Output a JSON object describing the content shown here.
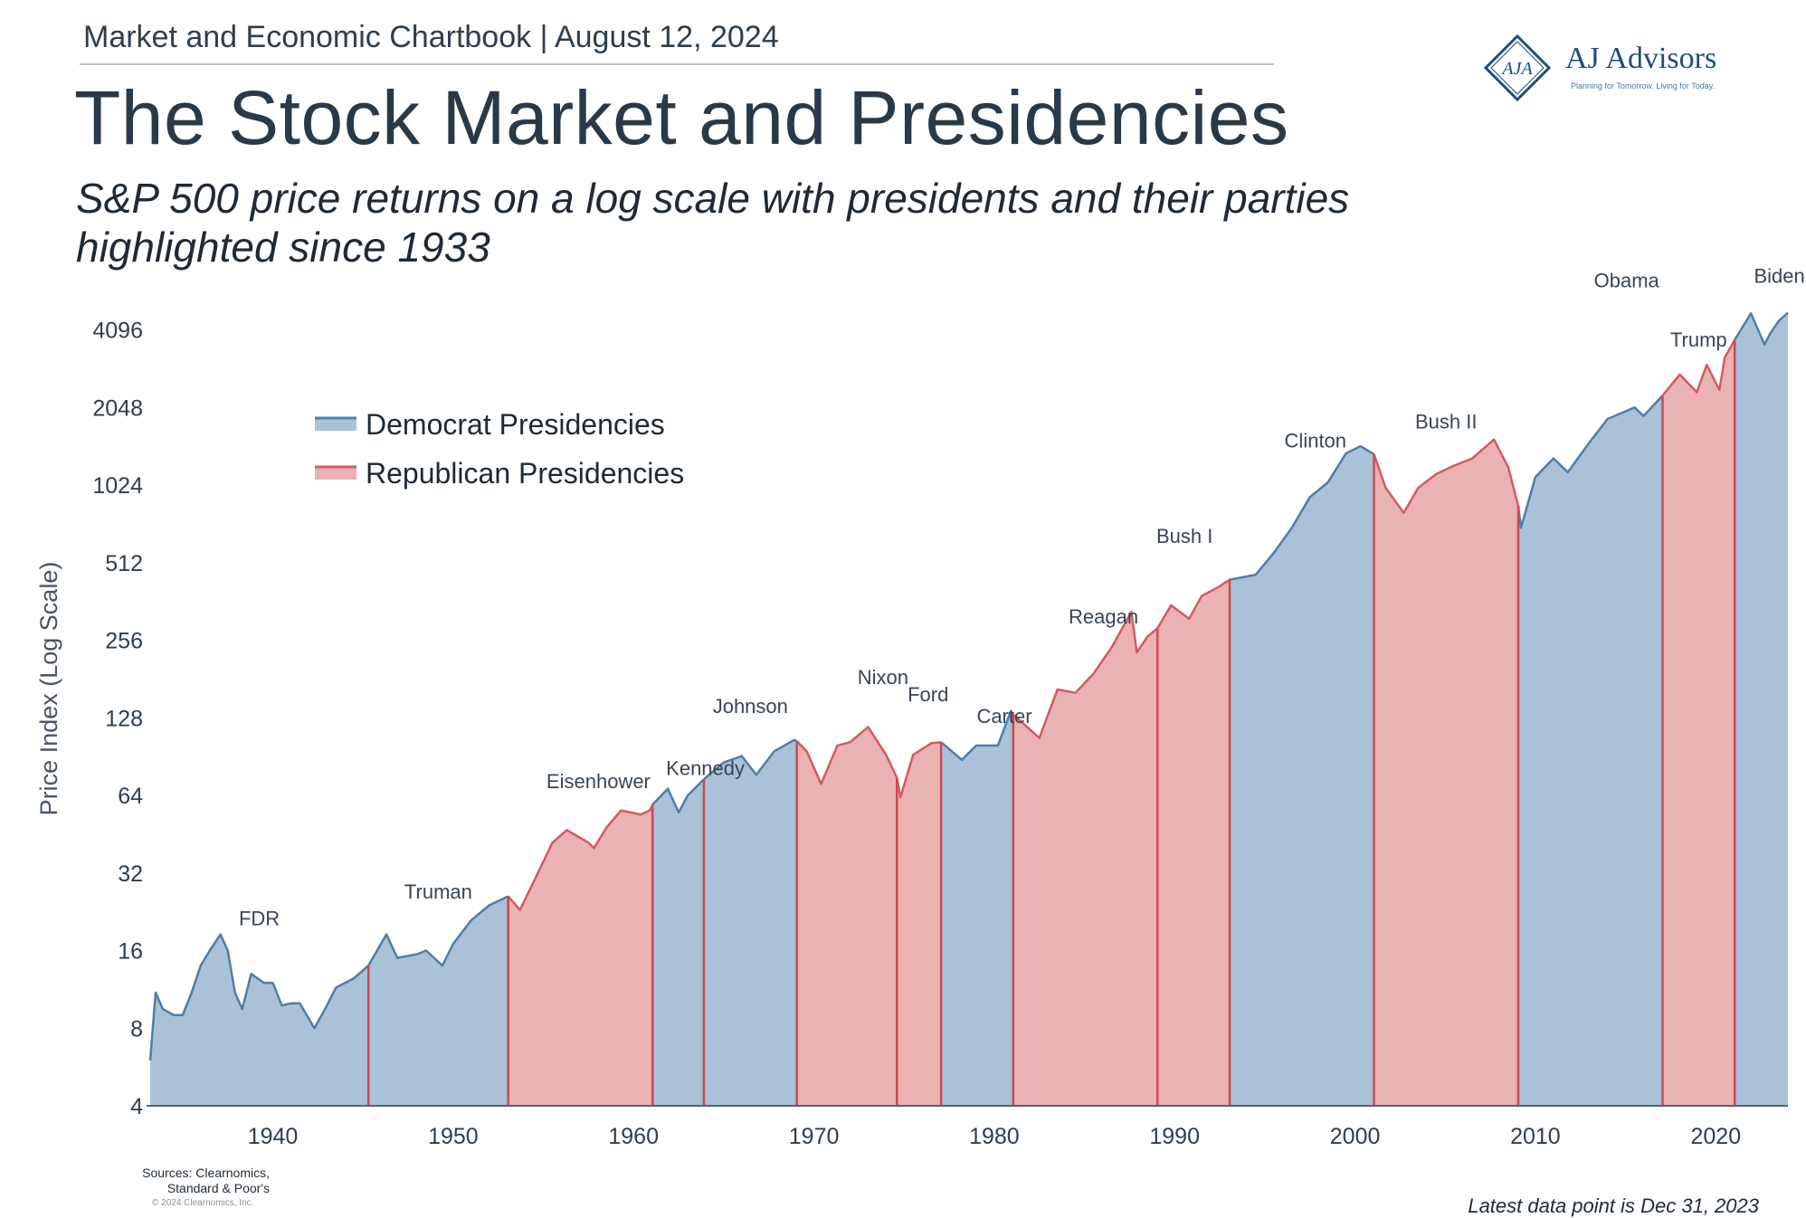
{
  "header": {
    "label": "Market and Economic Chartbook | August 12, 2024"
  },
  "title": "The Stock Market and Presidencies",
  "subtitle": "S&P 500 price returns on a log scale with presidents and their parties highlighted since 1933",
  "logo": {
    "name": "AJ Advisors",
    "mark": "AJA",
    "tagline": "Planning for Tomorrow. Living for Today."
  },
  "colors": {
    "democrat_fill": "#a9c2d8",
    "democrat_line": "#4f7ea8",
    "republican_fill": "#e9b2b3",
    "republican_line": "#d55a61",
    "text": "#2f3e4c"
  },
  "chart_data": {
    "type": "area",
    "title": "The Stock Market and Presidencies",
    "subtitle": "S&P 500 price returns on a log scale with presidents and their parties highlighted since 1933",
    "ylabel": "Price Index (Log Scale)",
    "xlabel": "",
    "y_scale": "log2",
    "ylim": [
      4,
      5000
    ],
    "xlim": [
      1933,
      2024
    ],
    "y_ticks": [
      4,
      8,
      16,
      32,
      64,
      128,
      256,
      512,
      1024,
      2048,
      4096
    ],
    "x_ticks": [
      1940,
      1950,
      1960,
      1970,
      1980,
      1990,
      2000,
      2010,
      2020
    ],
    "grid": false,
    "legend_position": "top-left",
    "legend": [
      {
        "label": "Democrat Presidencies",
        "party": "D"
      },
      {
        "label": "Republican Presidencies",
        "party": "R"
      }
    ],
    "presidencies": [
      {
        "name": "FDR",
        "party": "D",
        "start": 1933.2,
        "end": 1945.3
      },
      {
        "name": "Truman",
        "party": "D",
        "start": 1945.3,
        "end": 1953.05
      },
      {
        "name": "Eisenhower",
        "party": "R",
        "start": 1953.05,
        "end": 1961.05
      },
      {
        "name": "Kennedy",
        "party": "D",
        "start": 1961.05,
        "end": 1963.9
      },
      {
        "name": "Johnson",
        "party": "D",
        "start": 1963.9,
        "end": 1969.05
      },
      {
        "name": "Nixon",
        "party": "R",
        "start": 1969.05,
        "end": 1974.6
      },
      {
        "name": "Ford",
        "party": "R",
        "start": 1974.6,
        "end": 1977.05
      },
      {
        "name": "Carter",
        "party": "D",
        "start": 1977.05,
        "end": 1981.05
      },
      {
        "name": "Reagan",
        "party": "R",
        "start": 1981.05,
        "end": 1989.05
      },
      {
        "name": "Bush I",
        "party": "R",
        "start": 1989.05,
        "end": 1993.05
      },
      {
        "name": "Clinton",
        "party": "D",
        "start": 1993.05,
        "end": 2001.05
      },
      {
        "name": "Bush II",
        "party": "R",
        "start": 2001.05,
        "end": 2009.05
      },
      {
        "name": "Obama",
        "party": "D",
        "start": 2009.05,
        "end": 2017.05
      },
      {
        "name": "Trump",
        "party": "R",
        "start": 2017.05,
        "end": 2021.05
      },
      {
        "name": "Biden",
        "party": "D",
        "start": 2021.05,
        "end": 2024.0
      }
    ],
    "series": [
      {
        "values": [
          [
            1933.2,
            6
          ],
          [
            1933.5,
            11
          ],
          [
            1933.9,
            9.5
          ],
          [
            1934.5,
            9
          ],
          [
            1935.0,
            9
          ],
          [
            1935.5,
            11
          ],
          [
            1936.0,
            14
          ],
          [
            1936.5,
            16
          ],
          [
            1937.1,
            18.5
          ],
          [
            1937.5,
            16
          ],
          [
            1937.9,
            11
          ],
          [
            1938.3,
            9.5
          ],
          [
            1938.8,
            13
          ],
          [
            1939.5,
            12
          ],
          [
            1940.0,
            12
          ],
          [
            1940.5,
            9.8
          ],
          [
            1941.0,
            10
          ],
          [
            1941.5,
            10
          ],
          [
            1942.3,
            8
          ],
          [
            1942.9,
            9.5
          ],
          [
            1943.5,
            11.5
          ],
          [
            1944.5,
            12.5
          ],
          [
            1945.3,
            14
          ],
          [
            1946.3,
            18.5
          ],
          [
            1946.9,
            15
          ],
          [
            1948.0,
            15.5
          ],
          [
            1948.5,
            16
          ],
          [
            1949.4,
            14
          ],
          [
            1950.0,
            17
          ],
          [
            1951.0,
            21
          ],
          [
            1952.0,
            24
          ],
          [
            1952.8,
            25.5
          ],
          [
            1953.05,
            26
          ],
          [
            1953.7,
            23
          ],
          [
            1954.5,
            30
          ],
          [
            1955.5,
            42
          ],
          [
            1956.3,
            47
          ],
          [
            1957.5,
            42
          ],
          [
            1957.8,
            40
          ],
          [
            1958.5,
            48
          ],
          [
            1959.3,
            56
          ],
          [
            1960.4,
            54
          ],
          [
            1960.9,
            56
          ],
          [
            1961.05,
            59
          ],
          [
            1961.9,
            68
          ],
          [
            1962.5,
            55
          ],
          [
            1963.0,
            64
          ],
          [
            1963.9,
            74
          ],
          [
            1965.0,
            86
          ],
          [
            1966.0,
            91
          ],
          [
            1966.8,
            77
          ],
          [
            1967.8,
            95
          ],
          [
            1968.9,
            105
          ],
          [
            1969.05,
            104
          ],
          [
            1969.6,
            95
          ],
          [
            1970.4,
            71
          ],
          [
            1971.3,
            100
          ],
          [
            1972.0,
            103
          ],
          [
            1973.0,
            118
          ],
          [
            1974.0,
            92
          ],
          [
            1974.6,
            75
          ],
          [
            1974.8,
            63
          ],
          [
            1975.5,
            92
          ],
          [
            1976.5,
            102
          ],
          [
            1977.05,
            103
          ],
          [
            1978.2,
            88
          ],
          [
            1979.0,
            100
          ],
          [
            1980.2,
            100
          ],
          [
            1980.9,
            135
          ],
          [
            1981.05,
            132
          ],
          [
            1982.5,
            107
          ],
          [
            1983.5,
            165
          ],
          [
            1984.5,
            160
          ],
          [
            1985.5,
            190
          ],
          [
            1986.5,
            240
          ],
          [
            1987.6,
            330
          ],
          [
            1987.9,
            230
          ],
          [
            1988.5,
            265
          ],
          [
            1989.05,
            285
          ],
          [
            1989.8,
            350
          ],
          [
            1990.8,
            310
          ],
          [
            1991.5,
            380
          ],
          [
            1992.5,
            415
          ],
          [
            1993.05,
            440
          ],
          [
            1994.5,
            460
          ],
          [
            1995.5,
            560
          ],
          [
            1996.5,
            700
          ],
          [
            1997.5,
            920
          ],
          [
            1998.5,
            1050
          ],
          [
            1999.5,
            1360
          ],
          [
            2000.3,
            1450
          ],
          [
            2001.05,
            1350
          ],
          [
            2001.7,
            1000
          ],
          [
            2002.7,
            800
          ],
          [
            2003.5,
            1000
          ],
          [
            2004.5,
            1130
          ],
          [
            2005.5,
            1220
          ],
          [
            2006.5,
            1300
          ],
          [
            2007.7,
            1540
          ],
          [
            2008.5,
            1200
          ],
          [
            2009.05,
            850
          ],
          [
            2009.2,
            700
          ],
          [
            2010.0,
            1100
          ],
          [
            2011.0,
            1300
          ],
          [
            2011.8,
            1150
          ],
          [
            2013.0,
            1500
          ],
          [
            2014.0,
            1850
          ],
          [
            2015.5,
            2050
          ],
          [
            2016.0,
            1900
          ],
          [
            2017.05,
            2280
          ],
          [
            2018.0,
            2750
          ],
          [
            2018.95,
            2350
          ],
          [
            2019.5,
            3000
          ],
          [
            2020.2,
            2400
          ],
          [
            2020.5,
            3200
          ],
          [
            2021.05,
            3750
          ],
          [
            2021.95,
            4750
          ],
          [
            2022.7,
            3600
          ],
          [
            2023.0,
            3950
          ],
          [
            2023.5,
            4450
          ],
          [
            2024.0,
            4780
          ]
        ]
      }
    ]
  },
  "sources": {
    "line1": "Sources: Clearnomics,",
    "line2": "Standard & Poor's",
    "copyright": "© 2024 Clearnomics, Inc."
  },
  "footnote": "Latest data point is Dec 31, 2023"
}
